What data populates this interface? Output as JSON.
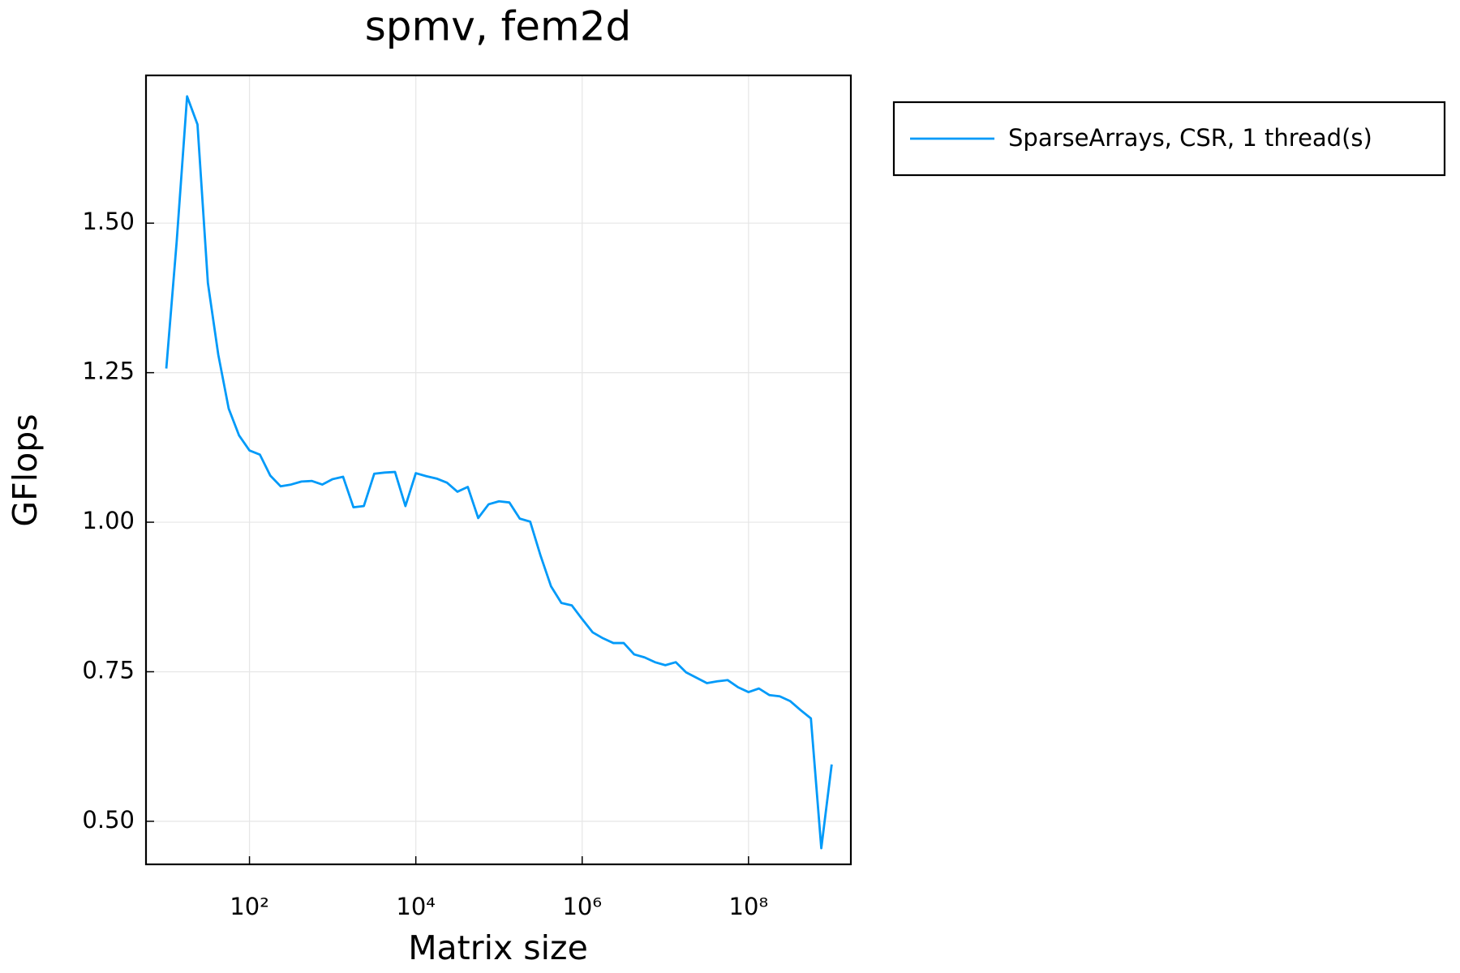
{
  "chart_data": {
    "type": "line",
    "title": "spmv, fem2d",
    "x_label": "Matrix size",
    "y_label": "GFlops",
    "log_x": true,
    "grid": true,
    "legend_position": "outside-right-top",
    "xlim": [
      5.7,
      1700000000
    ],
    "ylim": [
      0.428,
      1.747
    ],
    "xticks": [
      {
        "value": 100,
        "label": "10²"
      },
      {
        "value": 10000,
        "label": "10⁴"
      },
      {
        "value": 1000000,
        "label": "10⁶"
      },
      {
        "value": 100000000,
        "label": "10⁸"
      }
    ],
    "yticks": [
      {
        "value": 0.5,
        "label": "0.50"
      },
      {
        "value": 0.75,
        "label": "0.75"
      },
      {
        "value": 1.0,
        "label": "1.00"
      },
      {
        "value": 1.25,
        "label": "1.25"
      },
      {
        "value": 1.5,
        "label": "1.50"
      }
    ],
    "x": [
      10,
      13.34,
      17.78,
      23.71,
      31.62,
      42.17,
      56.23,
      74.99,
      100,
      133.4,
      177.8,
      237.1,
      316.2,
      421.7,
      562.3,
      749.9,
      1000,
      1334,
      1778,
      2371,
      3162,
      4217,
      5623,
      7499,
      10000,
      13340,
      17780,
      23710,
      31620,
      42170,
      56230,
      74990,
      100000,
      133400,
      177800,
      237100,
      316200,
      421700,
      562300,
      749900,
      1000000,
      1334000,
      1778000,
      2371000,
      3162000,
      4217000,
      5623000,
      7499000,
      10000000,
      13340000,
      17780000,
      23710000,
      31620000,
      42170000,
      56230000,
      74990000,
      100000000,
      133400000,
      177800000,
      237100000,
      316200000,
      421700000,
      562300000,
      749900000,
      1000000000
    ],
    "series": [
      {
        "name": "SparseArrays, CSR, 1 thread(s)",
        "color": "#009af9",
        "values": [
          1.257,
          1.47,
          1.712,
          1.665,
          1.4,
          1.28,
          1.19,
          1.145,
          1.12,
          1.113,
          1.078,
          1.06,
          1.063,
          1.068,
          1.069,
          1.063,
          1.072,
          1.076,
          1.025,
          1.027,
          1.081,
          1.083,
          1.084,
          1.027,
          1.082,
          1.077,
          1.073,
          1.066,
          1.051,
          1.059,
          1.007,
          1.03,
          1.035,
          1.033,
          1.006,
          1.001,
          0.944,
          0.893,
          0.865,
          0.861,
          0.838,
          0.816,
          0.806,
          0.798,
          0.798,
          0.779,
          0.774,
          0.766,
          0.761,
          0.766,
          0.749,
          0.74,
          0.731,
          0.734,
          0.736,
          0.724,
          0.716,
          0.722,
          0.711,
          0.709,
          0.701,
          0.686,
          0.672,
          0.455,
          0.595
        ]
      }
    ]
  }
}
